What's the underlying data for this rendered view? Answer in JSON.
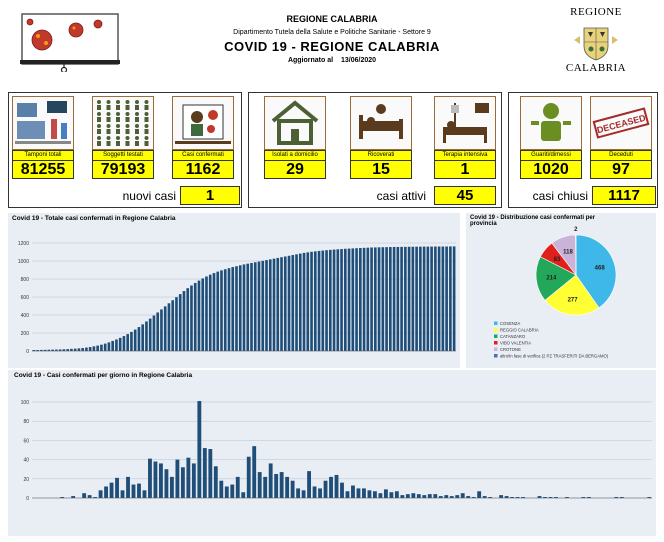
{
  "header": {
    "title": "REGIONE CALABRIA",
    "department": "Dipartimento Tutela della Salute e Politiche Sanitarie - Settore 9",
    "covid_title": "COVID 19 - REGIONE CALABRIA",
    "updated_label": "Aggiornato al",
    "updated_date": "13/06/2020"
  },
  "logo": {
    "top": "REGIONE",
    "bottom": "CALABRIA"
  },
  "stats": {
    "tamponi": {
      "label": "Tamponi totali",
      "value": "81255"
    },
    "soggetti": {
      "label": "Soggetti testati",
      "value": "79193"
    },
    "confermati": {
      "label": "Casi confermati",
      "value": "1162"
    },
    "isolati": {
      "label": "Isolati a domicilio",
      "value": "29"
    },
    "ricoverati": {
      "label": "Ricoverati",
      "value": "15"
    },
    "terapia": {
      "label": "Terapia intensiva",
      "value": "1"
    },
    "guariti": {
      "label": "Guariti/dimessi",
      "value": "1020"
    },
    "deceduti": {
      "label": "Deceduti",
      "value": "97"
    },
    "deceased_stamp": "DECEASED"
  },
  "summary": {
    "nuovi_label": "nuovi casi",
    "nuovi_value": "1",
    "attivi_label": "casi attivi",
    "attivi_value": "45",
    "chiusi_label": "casi chiusi",
    "chiusi_value": "1117"
  },
  "chart_data": [
    {
      "type": "bar",
      "title": "Covid 19 - Totale casi confermati in Regione Calabria",
      "ylim": [
        0,
        1200
      ],
      "yticks": [
        0,
        200,
        400,
        600,
        800,
        1000,
        1200
      ],
      "grid": true,
      "color": "#1f4e79",
      "values": [
        11,
        11,
        12,
        13,
        14,
        15,
        16,
        17,
        19,
        21,
        24,
        26,
        29,
        33,
        38,
        44,
        52,
        60,
        70,
        82,
        96,
        112,
        128,
        146,
        166,
        188,
        212,
        238,
        266,
        296,
        328,
        360,
        394,
        428,
        462,
        496,
        530,
        564,
        598,
        632,
        666,
        698,
        728,
        756,
        782,
        806,
        828,
        848,
        866,
        882,
        896,
        908,
        920,
        932,
        942,
        952,
        962,
        970,
        978,
        986,
        994,
        1002,
        1010,
        1018,
        1026,
        1034,
        1042,
        1050,
        1058,
        1066,
        1074,
        1082,
        1090,
        1096,
        1102,
        1107,
        1112,
        1116,
        1120,
        1124,
        1127,
        1130,
        1133,
        1136,
        1138,
        1140,
        1142,
        1144,
        1146,
        1148,
        1150,
        1151,
        1152,
        1153,
        1154,
        1155,
        1156,
        1156,
        1157,
        1157,
        1158,
        1158,
        1159,
        1159,
        1160,
        1160,
        1160,
        1161,
        1161,
        1161,
        1161,
        1162,
        1162
      ]
    },
    {
      "type": "pie",
      "title": "Covid 19 - Distribuzione casi confermati per provincia",
      "slices": [
        {
          "name": "COSENZA",
          "value": 468,
          "color": "#3db8e8"
        },
        {
          "name": "REGGIO CALABRIA",
          "value": 277,
          "color": "#ffff33"
        },
        {
          "name": "CATANZARO",
          "value": 214,
          "color": "#22a85a"
        },
        {
          "name": "VIBO VALENTIA",
          "value": 83,
          "color": "#e0201b"
        },
        {
          "name": "CROTONE",
          "value": 118,
          "color": "#c9b3d9"
        },
        {
          "name": "altro/in fase di verifica (2 PZ TRASFERITI DA BERGAMO)",
          "value": 2,
          "color": "#4c6fb5"
        }
      ]
    },
    {
      "type": "bar",
      "title": "Covid 19 - Casi confermati per giorno in Regione Calabria",
      "ylim": [
        0,
        100
      ],
      "yticks": [
        0,
        20,
        40,
        60,
        80,
        100
      ],
      "grid": true,
      "color": "#1f4e79",
      "values": [
        0,
        0,
        0,
        0,
        0,
        1,
        0,
        2,
        0,
        5,
        3,
        1,
        8,
        12,
        16,
        21,
        8,
        22,
        14,
        15,
        8,
        41,
        38,
        36,
        30,
        22,
        40,
        32,
        42,
        36,
        101,
        52,
        51,
        33,
        18,
        12,
        14,
        22,
        6,
        43,
        54,
        27,
        22,
        36,
        25,
        27,
        22,
        18,
        10,
        8,
        28,
        12,
        10,
        18,
        22,
        24,
        16,
        7,
        13,
        10,
        10,
        8,
        7,
        5,
        9,
        6,
        7,
        3,
        4,
        5,
        4,
        3,
        4,
        4,
        2,
        3,
        2,
        3,
        5,
        2,
        1,
        7,
        2,
        1,
        0,
        3,
        2,
        1,
        1,
        1,
        0,
        0,
        2,
        1,
        1,
        1,
        0,
        1,
        0,
        0,
        1,
        1,
        0,
        0,
        0,
        0,
        1,
        1,
        0,
        0,
        0,
        0,
        1
      ]
    }
  ]
}
